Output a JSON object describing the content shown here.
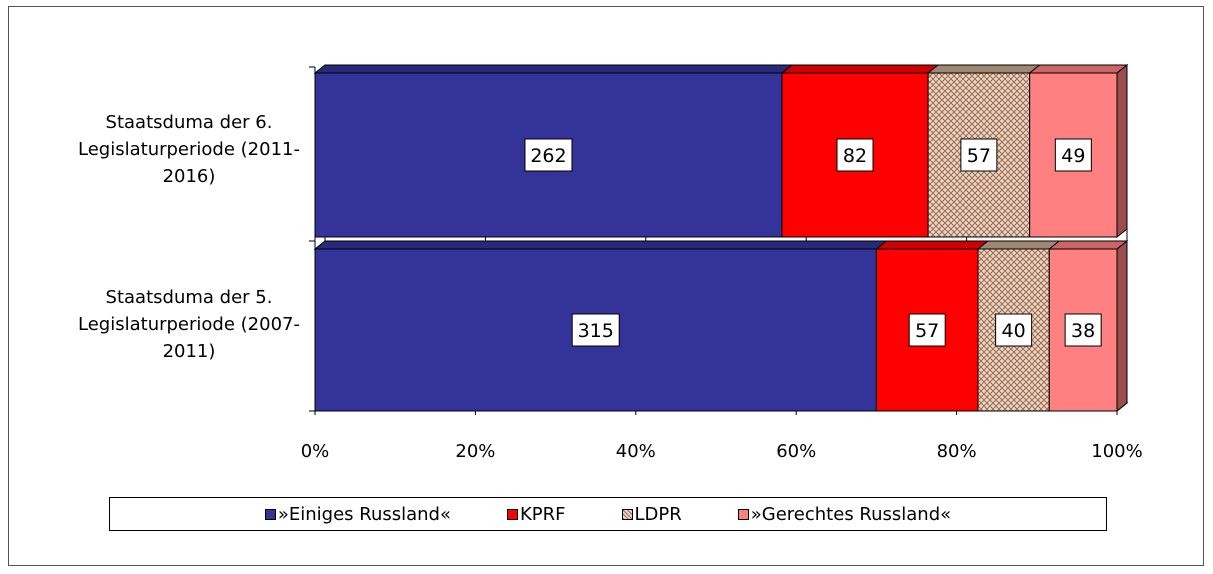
{
  "chart_data": {
    "type": "bar",
    "orientation": "horizontal",
    "stacked": "percent",
    "categories": [
      "Staatsduma der 6. Legislaturperiode (2011-2016)",
      "Staatsduma der 5. Legislaturperiode (2007-2011)"
    ],
    "category_label_lines": [
      [
        "Staatsduma der 6.",
        "Legislaturperiode (2011-",
        "2016)"
      ],
      [
        "Staatsduma der 5.",
        "Legislaturperiode (2007-",
        "2011)"
      ]
    ],
    "series": [
      {
        "name": "»Einiges Russland«",
        "values": [
          262,
          315
        ],
        "color": "#333399"
      },
      {
        "name": "KPRF",
        "values": [
          82,
          57
        ],
        "color": "#ff0000"
      },
      {
        "name": "LDPR",
        "values": [
          57,
          40
        ],
        "color": "#c8a890",
        "pattern": "crosshatch"
      },
      {
        "name": "»Gerechtes Russland«",
        "values": [
          49,
          38
        ],
        "color": "#ff8080"
      }
    ],
    "x_ticks": [
      "0%",
      "20%",
      "40%",
      "60%",
      "80%",
      "100%"
    ],
    "xlim": [
      0,
      100
    ],
    "grid": true,
    "legend_position": "bottom",
    "title": "",
    "xlabel": "",
    "ylabel": ""
  }
}
